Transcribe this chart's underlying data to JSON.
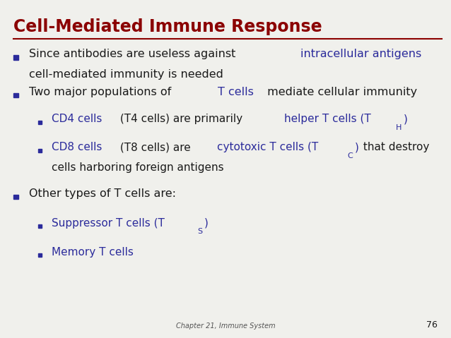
{
  "title": "Cell-Mediated Immune Response",
  "title_color": "#8B0000",
  "title_underline_color": "#8B0000",
  "bg_color": "#F0F0EC",
  "black": "#1a1a1a",
  "blue": "#2B2B9B",
  "bullet_color": "#2B2B9B",
  "footer_text": "Chapter 21, Immune System",
  "footer_color": "#555555",
  "page_number": "76",
  "font_size_main": 11.5,
  "font_size_sub": 11.0,
  "font_size_subscript": 8.0
}
